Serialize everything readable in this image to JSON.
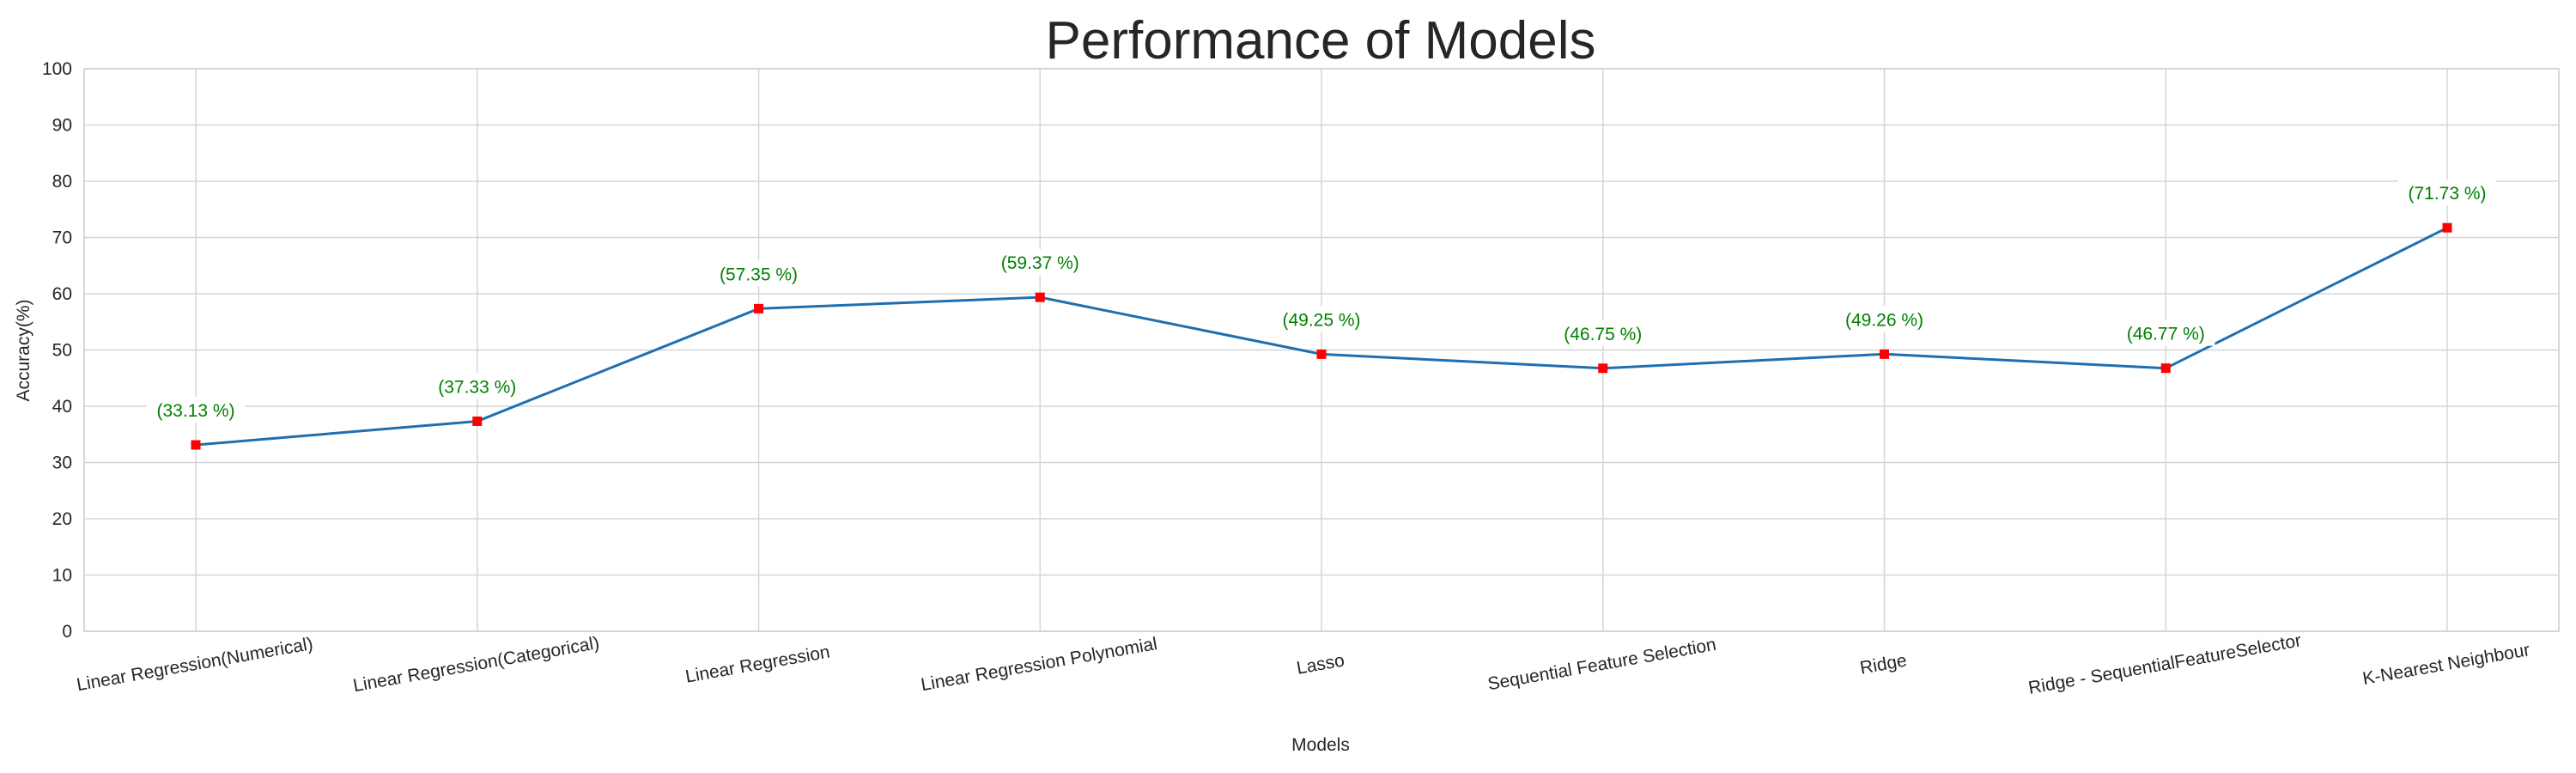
{
  "chart_data": {
    "type": "line",
    "title": "Performance of Models",
    "xlabel": "Models",
    "ylabel": "Accuracy(%)",
    "categories": [
      "Linear Regression(Numerical)",
      "Linear Regression(Categorical)",
      "Linear Regression",
      "Linear Regression Polynomial",
      "Lasso",
      "Sequential Feature Selection",
      "Ridge",
      "Ridge - SequentialFeatureSelector",
      "K-Nearest Neighbour"
    ],
    "values": [
      33.13,
      37.33,
      57.35,
      59.37,
      49.25,
      46.75,
      49.26,
      46.77,
      71.73
    ],
    "data_labels": [
      "(33.13 %)",
      "(37.33 %)",
      "(57.35 %)",
      "(59.37 %)",
      "(49.25 %)",
      "(46.75 %)",
      "(49.26 %)",
      "(46.77 %)",
      "(71.73 %)"
    ],
    "ylim": [
      0,
      100
    ],
    "yticks": [
      "0",
      "10",
      "20",
      "30",
      "40",
      "50",
      "60",
      "70",
      "80",
      "90",
      "100"
    ],
    "grid": true,
    "line_color": "#1f6fb0",
    "marker_color": "#ff0000",
    "label_color": "#008000",
    "grid_color": "#d5d5d5"
  }
}
